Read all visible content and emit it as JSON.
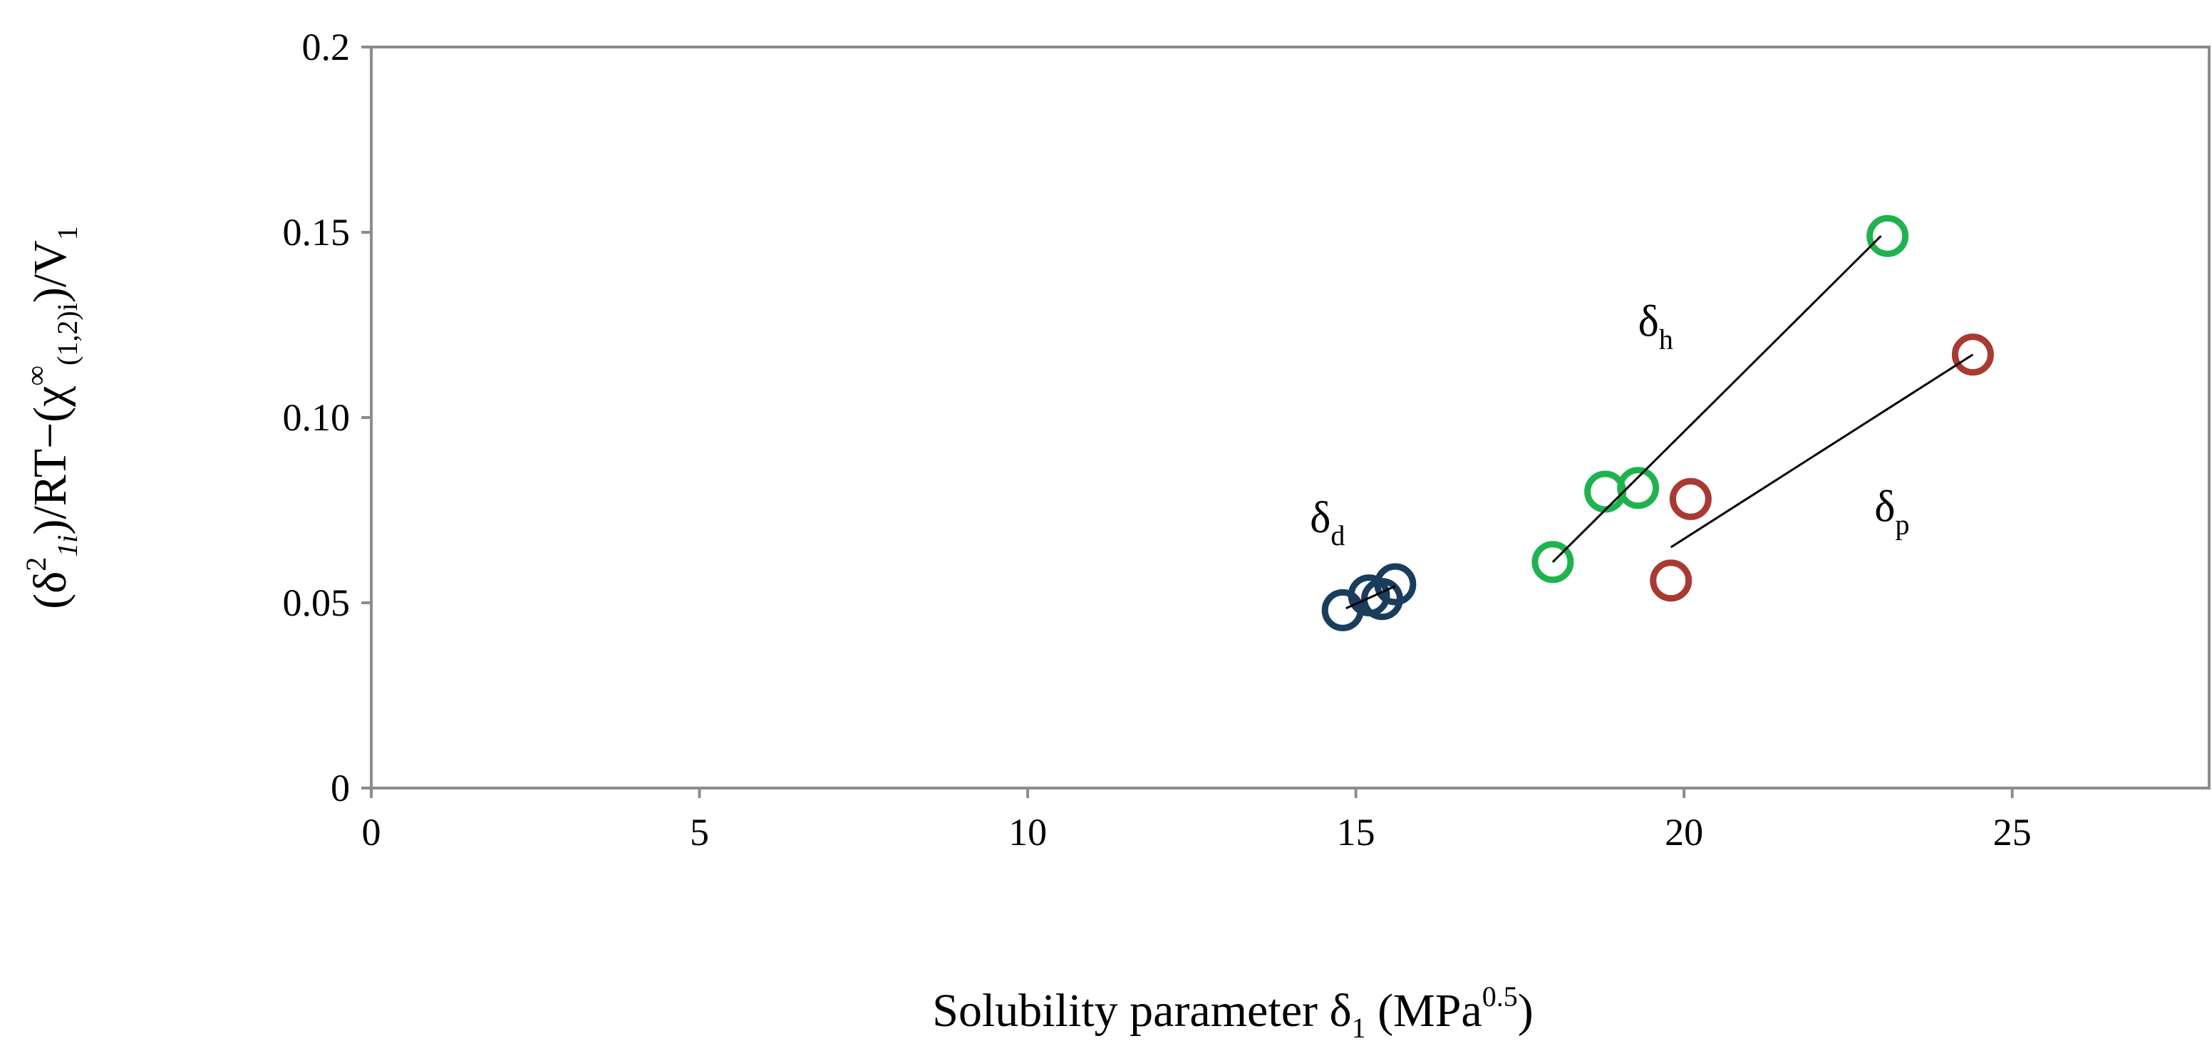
{
  "chart_data": {
    "type": "scatter",
    "xlabel": {
      "main": "Solubility parameter δ",
      "sub": "1",
      "unit_open": " (MPa",
      "sup": "0.5",
      "unit_close": ")"
    },
    "ylabel": {
      "p1": "(δ",
      "sup1": "2",
      "sub1": "1i",
      "p2": ")/RT−(χ",
      "sup2": "∞",
      "sub2": "(1,2)i",
      "p3": ")/V",
      "sub3": "1"
    },
    "xlim": [
      0,
      28
    ],
    "ylim": [
      0,
      0.2
    ],
    "x_ticks": [
      {
        "value": 0,
        "label": "0"
      },
      {
        "value": 5,
        "label": "5"
      },
      {
        "value": 10,
        "label": "10"
      },
      {
        "value": 15,
        "label": "15"
      },
      {
        "value": 20,
        "label": "20"
      },
      {
        "value": 25,
        "label": "25"
      }
    ],
    "y_ticks": [
      {
        "value": 0,
        "label": "0"
      },
      {
        "value": 0.05,
        "label": "0.05"
      },
      {
        "value": 0.1,
        "label": "0.10"
      },
      {
        "value": 0.15,
        "label": "0.15"
      },
      {
        "value": 0.2,
        "label": "0.2"
      }
    ],
    "grid": false,
    "series": [
      {
        "name": "δd",
        "label_main": "δ",
        "label_sub": "d",
        "color": "#1a3d5c",
        "points": [
          {
            "x": 14.8,
            "y": 0.048
          },
          {
            "x": 15.2,
            "y": 0.052
          },
          {
            "x": 15.4,
            "y": 0.051
          },
          {
            "x": 15.6,
            "y": 0.055
          }
        ],
        "trend": {
          "x": [
            14.85,
            15.6
          ],
          "y": [
            0.0485,
            0.0545
          ]
        },
        "label_at": {
          "x": 14.3,
          "y": 0.069
        }
      },
      {
        "name": "δh",
        "label_main": "δ",
        "label_sub": "h",
        "color": "#1fb34f",
        "points": [
          {
            "x": 18.0,
            "y": 0.061
          },
          {
            "x": 18.8,
            "y": 0.08
          },
          {
            "x": 19.3,
            "y": 0.081
          },
          {
            "x": 23.1,
            "y": 0.149
          }
        ],
        "trend": {
          "x": [
            18.0,
            23.0
          ],
          "y": [
            0.061,
            0.149
          ]
        },
        "label_at": {
          "x": 19.3,
          "y": 0.122
        }
      },
      {
        "name": "δp",
        "label_main": "δ",
        "label_sub": "p",
        "color": "#a83a32",
        "points": [
          {
            "x": 19.8,
            "y": 0.056
          },
          {
            "x": 20.1,
            "y": 0.078
          },
          {
            "x": 24.4,
            "y": 0.117
          }
        ],
        "trend": {
          "x": [
            19.8,
            24.4
          ],
          "y": [
            0.065,
            0.117
          ]
        },
        "label_at": {
          "x": 22.9,
          "y": 0.072
        }
      }
    ]
  }
}
